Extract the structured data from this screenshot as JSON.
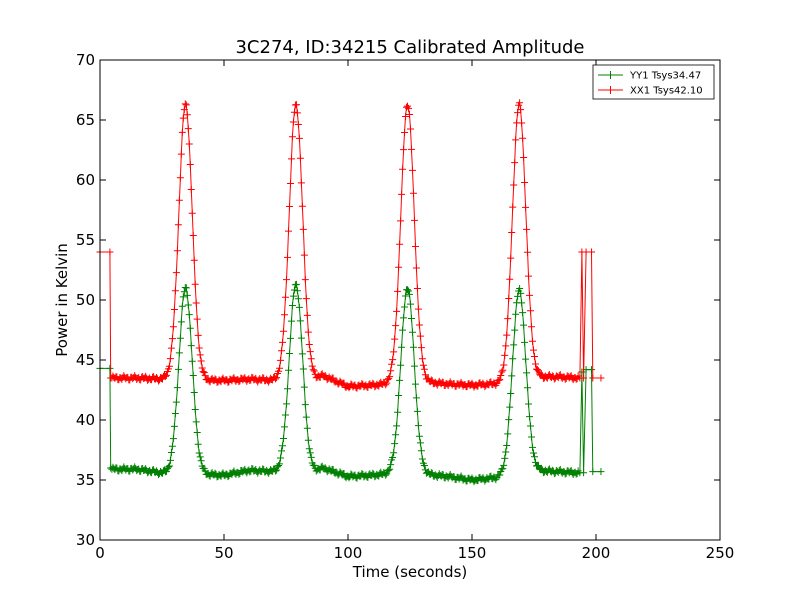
{
  "chart_data": {
    "type": "line",
    "title": "3C274, ID:34215 Calibrated Amplitude",
    "xlabel": "Time (seconds)",
    "ylabel": "Power in Kelvin",
    "xlim": [
      0,
      250
    ],
    "ylim": [
      30,
      70
    ],
    "xticks": [
      0,
      50,
      100,
      150,
      200,
      250
    ],
    "yticks": [
      30,
      35,
      40,
      45,
      50,
      55,
      60,
      65,
      70
    ],
    "grid": false,
    "legend_position": "top-right",
    "marker": "plus",
    "series": [
      {
        "name": "YY1 Tsys34.47",
        "color": "#008000",
        "base": [
          [
            5,
            35.9
          ],
          [
            15,
            35.9
          ],
          [
            28,
            35.5
          ],
          [
            38,
            35.5
          ],
          [
            50,
            35.4
          ],
          [
            60,
            35.8
          ],
          [
            72,
            35.7
          ],
          [
            85,
            35.6
          ],
          [
            90,
            36.0
          ],
          [
            100,
            35.3
          ],
          [
            110,
            35.4
          ],
          [
            120,
            35.6
          ],
          [
            130,
            35.5
          ],
          [
            140,
            35.3
          ],
          [
            150,
            35.0
          ],
          [
            165,
            35.3
          ],
          [
            175,
            35.8
          ],
          [
            185,
            35.7
          ],
          [
            193,
            35.6
          ]
        ],
        "peaks": [
          {
            "x": 34.5,
            "y": 51.0
          },
          {
            "x": 79.0,
            "y": 51.3
          },
          {
            "x": 124.0,
            "y": 51.0
          },
          {
            "x": 169.0,
            "y": 50.8
          }
        ],
        "start": [
          [
            0,
            44.3
          ],
          [
            4,
            44.3
          ],
          [
            4.3,
            36.0
          ]
        ],
        "end": [
          [
            193.5,
            35.6
          ],
          [
            194.3,
            44.0
          ],
          [
            195.0,
            35.6
          ],
          [
            196.0,
            44.2
          ],
          [
            198.2,
            44.2
          ],
          [
            198.7,
            35.7
          ],
          [
            202,
            35.7
          ]
        ]
      },
      {
        "name": "XX1 Tsys42.10",
        "color": "#ff0000",
        "base": [
          [
            5,
            43.5
          ],
          [
            15,
            43.5
          ],
          [
            28,
            43.4
          ],
          [
            38,
            43.3
          ],
          [
            50,
            43.3
          ],
          [
            60,
            43.4
          ],
          [
            72,
            43.3
          ],
          [
            85,
            43.3
          ],
          [
            90,
            43.7
          ],
          [
            100,
            42.8
          ],
          [
            110,
            42.9
          ],
          [
            120,
            43.1
          ],
          [
            130,
            43.2
          ],
          [
            140,
            43.0
          ],
          [
            150,
            42.9
          ],
          [
            165,
            43.1
          ],
          [
            175,
            43.6
          ],
          [
            185,
            43.6
          ],
          [
            193,
            43.5
          ]
        ],
        "peaks": [
          {
            "x": 34.5,
            "y": 66.3
          },
          {
            "x": 79.0,
            "y": 66.3
          },
          {
            "x": 124.0,
            "y": 66.3
          },
          {
            "x": 169.0,
            "y": 66.3
          }
        ],
        "start": [
          [
            0,
            54.0
          ],
          [
            4,
            54.0
          ],
          [
            4.3,
            43.5
          ]
        ],
        "end": [
          [
            193.5,
            43.5
          ],
          [
            194.3,
            54.0
          ],
          [
            195.0,
            43.5
          ],
          [
            196.0,
            54.0
          ],
          [
            198.2,
            54.0
          ],
          [
            198.7,
            43.5
          ],
          [
            202,
            43.5
          ]
        ]
      }
    ]
  }
}
